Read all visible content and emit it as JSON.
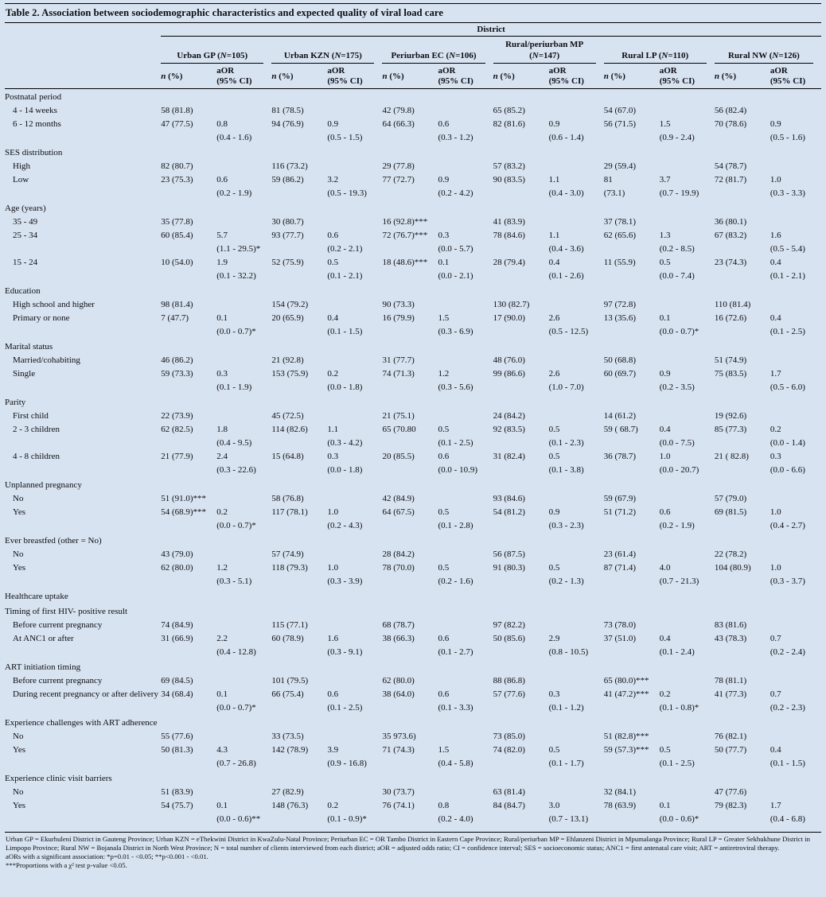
{
  "title": "Table 2.  Association between sociodemographic characteristics and expected quality of viral load care",
  "header": {
    "district": "District",
    "districts": [
      "Urban GP (N=105)",
      "Urban KZN (N=175)",
      "Periurban EC (N=106)",
      "Rural/periurban MP\n(N=147)",
      "Rural LP (N=110)",
      "Rural NW (N=126)"
    ],
    "sub_n": "n (%)",
    "sub_aor_line1": "aOR",
    "sub_aor_line2": "(95% CI)"
  },
  "sections": [
    {
      "label": "Postnatal period",
      "rows": [
        {
          "label": "4 - 14 weeks",
          "cells": [
            [
              "58 (81.8)",
              "",
              ""
            ],
            [
              "81 (78.5)",
              "",
              ""
            ],
            [
              "42 (79.8)",
              "",
              ""
            ],
            [
              "65 (85.2)",
              "",
              ""
            ],
            [
              "54 (67.0)",
              "",
              ""
            ],
            [
              "56 (82.4)",
              "",
              ""
            ]
          ]
        },
        {
          "label": "6 - 12 months",
          "cells": [
            [
              "47 (77.5)",
              "0.8",
              "(0.4 - 1.6)"
            ],
            [
              "94 (76.9)",
              "0.9",
              "(0.5 - 1.5)"
            ],
            [
              "64 (66.3)",
              "0.6",
              "(0.3 - 1.2)"
            ],
            [
              "82 (81.6)",
              "0.9",
              "(0.6 - 1.4)"
            ],
            [
              "56 (71.5)",
              "1.5",
              "(0.9 - 2.4)"
            ],
            [
              "70 (78.6)",
              "0.9",
              "(0.5 - 1.6)"
            ]
          ]
        }
      ]
    },
    {
      "label": "SES distribution",
      "rows": [
        {
          "label": "High",
          "cells": [
            [
              "82 (80.7)",
              "",
              ""
            ],
            [
              "116 (73.2)",
              "",
              ""
            ],
            [
              "29 (77.8)",
              "",
              ""
            ],
            [
              "57 (83.2)",
              "",
              ""
            ],
            [
              "29 (59.4)",
              "",
              ""
            ],
            [
              "54 (78.7)",
              "",
              ""
            ]
          ]
        },
        {
          "label": "Low",
          "cells": [
            [
              "23 (75.3)",
              "0.6",
              "(0.2 - 1.9)"
            ],
            [
              "59 (86.2)",
              "3.2",
              "(0.5 - 19.3)"
            ],
            [
              "77 (72.7)",
              "0.9",
              "(0.2 - 4.2)"
            ],
            [
              "90 (83.5)",
              "1.1",
              "(0.4 - 3.0)"
            ],
            [
              "81\n(73.1)",
              "3.7",
              "(0.7 - 19.9)"
            ],
            [
              "72 (81.7)",
              "1.0",
              "(0.3 - 3.3)"
            ]
          ]
        }
      ]
    },
    {
      "label": "Age (years)",
      "rows": [
        {
          "label": "35 - 49",
          "cells": [
            [
              "35 (77.8)",
              "",
              ""
            ],
            [
              "30 (80.7)",
              "",
              ""
            ],
            [
              "16 (92.8)***",
              "",
              ""
            ],
            [
              "41 (83.9)",
              "",
              ""
            ],
            [
              "37 (78.1)",
              "",
              ""
            ],
            [
              "36 (80.1)",
              "",
              ""
            ]
          ]
        },
        {
          "label": "25 - 34",
          "cells": [
            [
              "60 (85.4)",
              "5.7",
              "(1.1 - 29.5)*"
            ],
            [
              "93 (77.7)",
              "0.6",
              "(0.2 - 2.1)"
            ],
            [
              "72 (76.7)***",
              "0.3",
              "(0.0 - 5.7)"
            ],
            [
              "78 (84.6)",
              "1.1",
              "(0.4 - 3.6)"
            ],
            [
              "62 (65.6)",
              "1.3",
              "(0.2 - 8.5)"
            ],
            [
              "67 (83.2)",
              "1.6",
              "(0.5 - 5.4)"
            ]
          ]
        },
        {
          "label": "15 - 24",
          "cells": [
            [
              "10 (54.0)",
              "1.9",
              "(0.1 - 32.2)"
            ],
            [
              "52 (75.9)",
              "0.5",
              "(0.1 - 2.1)"
            ],
            [
              "18 (48.6)***",
              "0.1",
              "(0.0 - 2.1)"
            ],
            [
              "28 (79.4)",
              "0.4",
              "(0.1 - 2.6)"
            ],
            [
              "11 (55.9)",
              "0.5",
              "(0.0 - 7.4)"
            ],
            [
              "23 (74.3)",
              "0.4",
              "(0.1 - 2.1)"
            ]
          ]
        }
      ]
    },
    {
      "label": "Education",
      "rows": [
        {
          "label": "High school and higher",
          "cells": [
            [
              "98 (81.4)",
              "",
              ""
            ],
            [
              "154 (79.2)",
              "",
              ""
            ],
            [
              "90 (73.3)",
              "",
              ""
            ],
            [
              "130 (82.7)",
              "",
              ""
            ],
            [
              "97 (72.8)",
              "",
              ""
            ],
            [
              "110 (81.4)",
              "",
              ""
            ]
          ]
        },
        {
          "label": "Primary or none",
          "cells": [
            [
              "7 (47.7)",
              "0.1",
              "(0.0 - 0.7)*"
            ],
            [
              "20 (65.9)",
              "0.4",
              "(0.1 - 1.5)"
            ],
            [
              "16 (79.9)",
              "1.5",
              "(0.3 - 6.9)"
            ],
            [
              "17 (90.0)",
              "2.6",
              "(0.5 - 12.5)"
            ],
            [
              "13 (35.6)",
              "0.1",
              "(0.0 - 0.7)*"
            ],
            [
              "16 (72.6)",
              "0.4",
              "(0.1 - 2.5)"
            ]
          ]
        }
      ]
    },
    {
      "label": "Marital status",
      "rows": [
        {
          "label": "Married/cohabiting",
          "cells": [
            [
              "46 (86.2)",
              "",
              ""
            ],
            [
              "21 (92.8)",
              "",
              ""
            ],
            [
              "31 (77.7)",
              "",
              ""
            ],
            [
              "48 (76.0)",
              "",
              ""
            ],
            [
              "50 (68.8)",
              "",
              ""
            ],
            [
              "51 (74.9)",
              "",
              ""
            ]
          ]
        },
        {
          "label": "Single",
          "cells": [
            [
              "59 (73.3)",
              "0.3",
              "(0.1 - 1.9)"
            ],
            [
              "153 (75.9)",
              "0.2",
              "(0.0 - 1.8)"
            ],
            [
              "74 (71.3)",
              "1.2",
              "(0.3 - 5.6)"
            ],
            [
              "99 (86.6)",
              "2.6",
              "(1.0 - 7.0)"
            ],
            [
              "60 (69.7)",
              "0.9",
              "(0.2 - 3.5)"
            ],
            [
              "75 (83.5)",
              "1.7",
              "(0.5 - 6.0)"
            ]
          ]
        }
      ]
    },
    {
      "label": "Parity",
      "rows": [
        {
          "label": "First child",
          "cells": [
            [
              "22 (73.9)",
              "",
              ""
            ],
            [
              "45 (72.5)",
              "",
              ""
            ],
            [
              "21 (75.1)",
              "",
              ""
            ],
            [
              "24 (84.2)",
              "",
              ""
            ],
            [
              "14 (61.2)",
              "",
              ""
            ],
            [
              "19 (92.6)",
              "",
              ""
            ]
          ]
        },
        {
          "label": "2 - 3 children",
          "cells": [
            [
              "62 (82.5)",
              "1.8",
              "(0.4 - 9.5)"
            ],
            [
              "114 (82.6)",
              "1.1",
              "(0.3 - 4.2)"
            ],
            [
              "65 (70.80",
              "0.5",
              "(0.1 - 2.5)"
            ],
            [
              "92 (83.5)",
              "0.5",
              "(0.1 - 2.3)"
            ],
            [
              "59 ( 68.7)",
              "0.4",
              "(0.0 - 7.5)"
            ],
            [
              "85 (77.3)",
              "0.2",
              "(0.0 - 1.4)"
            ]
          ]
        },
        {
          "label": "4 - 8 children",
          "cells": [
            [
              "21 (77.9)",
              "2.4",
              "(0.3 - 22.6)"
            ],
            [
              "15 (64.8)",
              "0.3",
              "(0.0 - 1.8)"
            ],
            [
              "20 (85.5)",
              "0.6",
              "(0.0 - 10.9)"
            ],
            [
              "31 (82.4)",
              "0.5",
              "(0.1 - 3.8)"
            ],
            [
              "36 (78.7)",
              "1.0",
              "(0.0 - 20.7)"
            ],
            [
              "21 ( 82.8)",
              "0.3",
              "(0.0 - 6.6)"
            ]
          ]
        }
      ]
    },
    {
      "label": "Unplanned pregnancy",
      "rows": [
        {
          "label": "No",
          "cells": [
            [
              "51 (91.0)***",
              "",
              ""
            ],
            [
              "58 (76.8)",
              "",
              ""
            ],
            [
              "42 (84.9)",
              "",
              ""
            ],
            [
              "93 (84.6)",
              "",
              ""
            ],
            [
              "59 (67.9)",
              "",
              ""
            ],
            [
              "57 (79.0)",
              "",
              ""
            ]
          ]
        },
        {
          "label": "Yes",
          "cells": [
            [
              "54 (68.9)***",
              "0.2",
              "(0.0 - 0.7)*"
            ],
            [
              "117 (78.1)",
              "1.0",
              "(0.2 - 4.3)"
            ],
            [
              "64 (67.5)",
              "0.5",
              "(0.1 - 2.8)"
            ],
            [
              "54 (81.2)",
              "0.9",
              "(0.3 - 2.3)"
            ],
            [
              "51 (71.2)",
              "0.6",
              "(0.2 - 1.9)"
            ],
            [
              "69 (81.5)",
              "1.0",
              "(0.4 - 2.7)"
            ]
          ]
        }
      ]
    },
    {
      "label": "Ever breastfed (other = No)",
      "rows": [
        {
          "label": "No",
          "cells": [
            [
              "43 (79.0)",
              "",
              ""
            ],
            [
              "57 (74.9)",
              "",
              ""
            ],
            [
              "28 (84.2)",
              "",
              ""
            ],
            [
              "56 (87.5)",
              "",
              ""
            ],
            [
              "23 (61.4)",
              "",
              ""
            ],
            [
              "22 (78.2)",
              "",
              ""
            ]
          ]
        },
        {
          "label": "Yes",
          "cells": [
            [
              "62 (80.0)",
              "1.2",
              "(0.3 - 5.1)"
            ],
            [
              "118 (79.3)",
              "1.0",
              "(0.3 - 3.9)"
            ],
            [
              "78 (70.0)",
              "0.5",
              "(0.2 - 1.6)"
            ],
            [
              "91 (80.3)",
              "0.5",
              "(0.2 - 1.3)"
            ],
            [
              "87 (71.4)",
              "4.0",
              "(0.7 - 21.3)"
            ],
            [
              "104 (80.9)",
              "1.0",
              "(0.3 - 3.7)"
            ]
          ]
        }
      ]
    },
    {
      "label": "Healthcare uptake",
      "rows": []
    },
    {
      "label": "Timing of first HIV- positive result",
      "rows": [
        {
          "label": "Before current pregnancy",
          "cells": [
            [
              "74 (84.9)",
              "",
              ""
            ],
            [
              "115 (77.1)",
              "",
              ""
            ],
            [
              "68 (78.7)",
              "",
              ""
            ],
            [
              "97 (82.2)",
              "",
              ""
            ],
            [
              "73 (78.0)",
              "",
              ""
            ],
            [
              "83 (81.6)",
              "",
              ""
            ]
          ]
        },
        {
          "label": "At ANC1 or after",
          "cells": [
            [
              "31 (66.9)",
              "2.2",
              "(0.4 - 12.8)"
            ],
            [
              "60 (78.9)",
              "1.6",
              "(0.3 - 9.1)"
            ],
            [
              "38 (66.3)",
              "0.6",
              "(0.1 - 2.7)"
            ],
            [
              "50 (85.6)",
              "2.9",
              "(0.8 - 10.5)"
            ],
            [
              "37 (51.0)",
              "0.4",
              "(0.1 - 2.4)"
            ],
            [
              "43 (78.3)",
              "0.7",
              "(0.2 - 2.4)"
            ]
          ]
        }
      ]
    },
    {
      "label": "ART initiation timing",
      "rows": [
        {
          "label": "Before current pregnancy",
          "cells": [
            [
              "69 (84.5)",
              "",
              ""
            ],
            [
              "101 (79.5)",
              "",
              ""
            ],
            [
              "62 (80.0)",
              "",
              ""
            ],
            [
              "88 (86.8)",
              "",
              ""
            ],
            [
              "65 (80.0)***",
              "",
              ""
            ],
            [
              "78 (81.1)",
              "",
              ""
            ]
          ]
        },
        {
          "label": "During recent pregnancy or after delivery",
          "cells": [
            [
              "34 (68.4)",
              "0.1",
              "(0.0 - 0.7)*"
            ],
            [
              "66 (75.4)",
              "0.6",
              "(0.1 - 2.5)"
            ],
            [
              "38 (64.0)",
              "0.6",
              "(0.1 - 3.3)"
            ],
            [
              "57 (77.6)",
              "0.3",
              "(0.1 - 1.2)"
            ],
            [
              "41 (47.2)***",
              "0.2",
              "(0.1 - 0.8)*"
            ],
            [
              "41 (77.3)",
              "0.7",
              "(0.2 - 2.3)"
            ]
          ]
        }
      ]
    },
    {
      "label": "Experience challenges with ART adherence",
      "rows": [
        {
          "label": "No",
          "cells": [
            [
              "55 (77.6)",
              "",
              ""
            ],
            [
              "33 (73.5)",
              "",
              ""
            ],
            [
              "35 973.6)",
              "",
              ""
            ],
            [
              "73 (85.0)",
              "",
              ""
            ],
            [
              "51 (82.8)***",
              "",
              ""
            ],
            [
              "76 (82.1)",
              "",
              ""
            ]
          ]
        },
        {
          "label": "Yes",
          "cells": [
            [
              "50 (81.3)",
              "4.3",
              "(0.7 - 26.8)"
            ],
            [
              "142 (78.9)",
              "3.9",
              "(0.9 - 16.8)"
            ],
            [
              "71 (74.3)",
              "1.5",
              "(0.4 - 5.8)"
            ],
            [
              "74 (82.0)",
              "0.5",
              "(0.1 - 1.7)"
            ],
            [
              "59 (57.3)***",
              "0.5",
              "(0.1 - 2.5)"
            ],
            [
              "50 (77.7)",
              "0.4",
              "(0.1 - 1.5)"
            ]
          ]
        }
      ]
    },
    {
      "label": "Experience clinic visit barriers",
      "rows": [
        {
          "label": "No",
          "cells": [
            [
              "51 (83.9)",
              "",
              ""
            ],
            [
              "27 (82.9)",
              "",
              ""
            ],
            [
              "30 (73.7)",
              "",
              ""
            ],
            [
              "63 (81.4)",
              "",
              ""
            ],
            [
              "32 (84.1)",
              "",
              ""
            ],
            [
              "47 (77.6)",
              "",
              ""
            ]
          ]
        },
        {
          "label": "Yes",
          "cells": [
            [
              "54 (75.7)",
              "0.1",
              "(0.0 - 0.6)**"
            ],
            [
              "148 (76.3)",
              "0.2",
              "(0.1 - 0.9)*"
            ],
            [
              "76 (74.1)",
              "0.8",
              "(0.2 - 4.0)"
            ],
            [
              "84 (84.7)",
              "3.0",
              "(0.7 - 13.1)"
            ],
            [
              "78 (63.9)",
              "0.1",
              "(0.0 - 0.6)*"
            ],
            [
              "79 (82.3)",
              "1.7",
              "(0.4 - 6.8)"
            ]
          ]
        }
      ]
    }
  ],
  "footnotes": [
    "Urban GP = Ekurhuleni District in Gauteng Province; Urban KZN = eThekwini District in KwaZulu-Natal Province; Periurban EC = OR Tambo District in Eastern Cape Province; Rural/periurban MP = Ehlanzeni District in Mpumalanga Province; Rural LP = Greater Sekhukhune District in Limpopo Province; Rural NW = Bojanala District in North West Province; N = total number of clients interviewed from each district; aOR = adjusted odds ratio; CI = confidence interval; SES = socioeconomic status; ANC1 = first antenatal care visit; ART = antiretroviral therapy.",
    "aORs with a significant association: *p=0.01 - <0.05; **p<0.001 - <0.01.",
    "***Proportions with a χ² test p-value <0.05."
  ]
}
